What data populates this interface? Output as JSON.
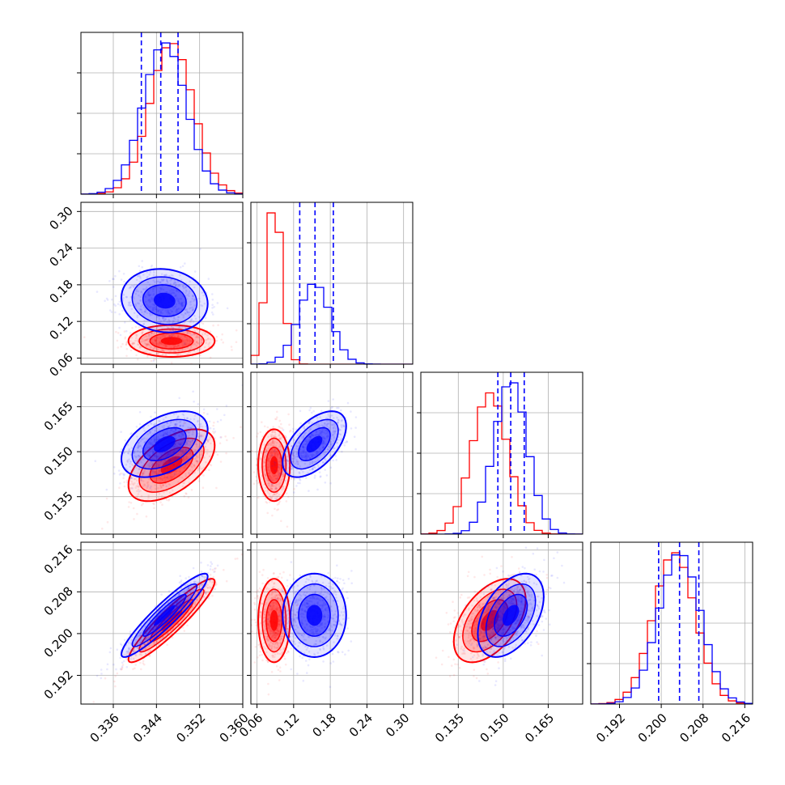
{
  "chart_data": {
    "type": "corner",
    "grid": true,
    "colors": {
      "red": "#ff0000",
      "blue": "#0000ff",
      "grid": "#b0b0b0"
    },
    "parameters": [
      {
        "range": [
          0.33,
          0.36
        ],
        "ticks": [
          0.336,
          0.344,
          0.352,
          0.36
        ],
        "tick_labels": [
          "0.336",
          "0.344",
          "0.352",
          "0.360"
        ]
      },
      {
        "range": [
          0.05,
          0.315
        ],
        "ticks": [
          0.06,
          0.12,
          0.18,
          0.24,
          0.3
        ],
        "tick_labels": [
          "0.06",
          "0.12",
          "0.18",
          "0.24",
          "0.30"
        ]
      },
      {
        "range": [
          0.1225,
          0.1765
        ],
        "ticks": [
          0.135,
          0.15,
          0.165
        ],
        "tick_labels": [
          "0.135",
          "0.150",
          "0.165"
        ]
      },
      {
        "range": [
          0.1865,
          0.2175
        ],
        "ticks": [
          0.192,
          0.2,
          0.208,
          0.216
        ],
        "tick_labels": [
          "0.192",
          "0.200",
          "0.208",
          "0.216"
        ]
      }
    ],
    "series": [
      {
        "color": "red",
        "mean": [
          0.3468,
          0.088,
          0.1455,
          0.2025
        ],
        "std": [
          0.004,
          0.013,
          0.006,
          0.004
        ],
        "corr": [
          [
            1.0,
            0.0,
            0.55,
            0.93
          ],
          [
            0.0,
            1.0,
            0.0,
            0.0
          ],
          [
            0.55,
            0.0,
            1.0,
            0.5
          ],
          [
            0.93,
            0.0,
            0.5,
            1.0
          ]
        ]
      },
      {
        "color": "blue",
        "mean": [
          0.3455,
          0.154,
          0.1525,
          0.2035
        ],
        "std": [
          0.004,
          0.026,
          0.0055,
          0.004
        ],
        "corr": [
          [
            1.0,
            -0.1,
            0.45,
            0.93
          ],
          [
            -0.1,
            1.0,
            0.55,
            0.0
          ],
          [
            0.45,
            0.55,
            1.0,
            0.45
          ],
          [
            0.93,
            0.0,
            0.45,
            1.0
          ]
        ]
      }
    ],
    "quantile_lines": [
      {
        "color": "blue",
        "values": [
          0.3412,
          0.3448,
          0.348
        ]
      },
      {
        "color": "blue",
        "values": [
          0.13,
          0.155,
          0.185
        ]
      },
      {
        "color": "blue",
        "values": [
          0.1482,
          0.1525,
          0.157
        ]
      },
      {
        "color": "blue",
        "values": [
          0.1995,
          0.2035,
          0.2072
        ]
      }
    ]
  }
}
